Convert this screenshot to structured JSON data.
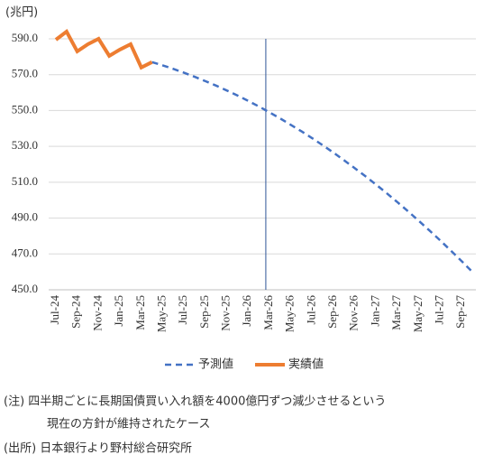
{
  "chart_data": {
    "type": "line",
    "unit_label": "(兆円)",
    "categories": [
      "Jul-24",
      null,
      "Sep-24",
      null,
      "Nov-24",
      null,
      "Jan-25",
      null,
      "Mar-25",
      null,
      "May-25",
      null,
      "Jul-25",
      null,
      "Sep-25",
      null,
      "Nov-25",
      null,
      "Jan-26",
      null,
      "Mar-26",
      null,
      "May-26",
      null,
      "Jul-26",
      null,
      "Sep-26",
      null,
      "Nov-26",
      null,
      "Jan-27",
      null,
      "Mar-27",
      null,
      "May-27",
      null,
      "Jul-27",
      null,
      "Sep-27",
      null
    ],
    "series": [
      {
        "name": "予測値",
        "color": "#4472c4",
        "style": "dashed",
        "values": [
          null,
          null,
          null,
          null,
          null,
          null,
          null,
          null,
          null,
          577.0,
          575.2,
          573.2,
          571.1,
          568.8,
          566.4,
          563.9,
          561.2,
          558.4,
          555.4,
          552.3,
          549.0,
          545.6,
          542.0,
          538.4,
          534.6,
          530.6,
          526.5,
          522.2,
          517.8,
          513.3,
          508.6,
          503.8,
          498.8,
          493.7,
          488.4,
          483.0,
          477.5,
          471.8,
          466.0,
          460.0
        ]
      },
      {
        "name": "実績値",
        "color": "#ed7d31",
        "style": "solid",
        "values": [
          589.5,
          594.0,
          583.0,
          587.0,
          590.0,
          580.5,
          584.0,
          587.0,
          574.0,
          577.0,
          null,
          null,
          null,
          null,
          null,
          null,
          null,
          null,
          null,
          null,
          null,
          null,
          null,
          null,
          null,
          null,
          null,
          null,
          null,
          null,
          null,
          null,
          null,
          null,
          null,
          null,
          null,
          null,
          null,
          null
        ]
      }
    ],
    "vline": "Mar-26",
    "ylim": [
      450,
      590
    ],
    "yticks": [
      {
        "value": 450,
        "label": "450.0"
      },
      {
        "value": 470,
        "label": "470.0"
      },
      {
        "value": 490,
        "label": "490.0"
      },
      {
        "value": 510,
        "label": "510.0"
      },
      {
        "value": 530,
        "label": "530.0"
      },
      {
        "value": 550,
        "label": "550.0"
      },
      {
        "value": 570,
        "label": "570.0"
      },
      {
        "value": 590,
        "label": "590.0"
      }
    ],
    "grid": true,
    "legend": "bottom",
    "notes": [
      "(注) 四半期ごとに長期国債買い入れ額を4000億円ずつ減少させるという",
      "現在の方針が維持されたケース",
      "(出所) 日本銀行より野村総合研究所"
    ]
  }
}
